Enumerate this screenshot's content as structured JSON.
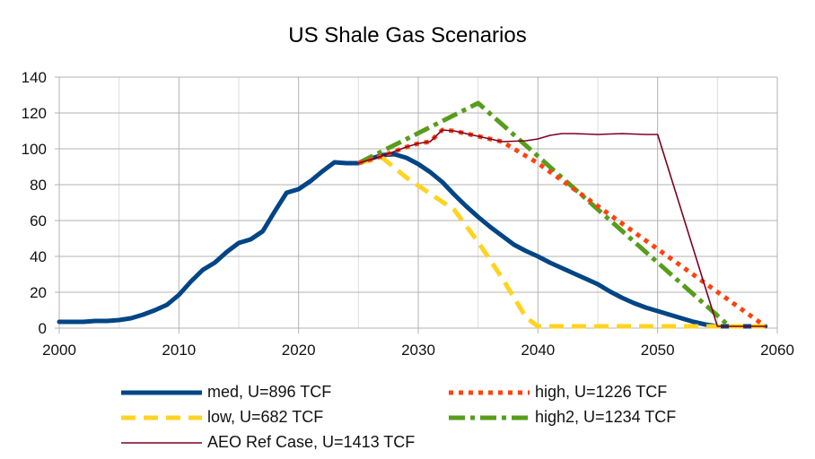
{
  "chart_data": {
    "type": "line",
    "title": "US Shale Gas Scenarios",
    "xlabel": "",
    "ylabel": "",
    "xlim": [
      2000,
      2060
    ],
    "ylim": [
      0,
      140
    ],
    "x_ticks": [
      2000,
      2010,
      2020,
      2030,
      2040,
      2050,
      2060
    ],
    "y_ticks": [
      0,
      20,
      40,
      60,
      80,
      100,
      120,
      140
    ],
    "grid": true,
    "legend_position": "bottom",
    "series": [
      {
        "name": "med, U=896 TCF",
        "color": "#004586",
        "style": "solid-thick",
        "x": [
          2000,
          2001,
          2002,
          2003,
          2004,
          2005,
          2006,
          2007,
          2008,
          2009,
          2010,
          2011,
          2012,
          2013,
          2014,
          2015,
          2016,
          2017,
          2018,
          2019,
          2020,
          2021,
          2022,
          2023,
          2024,
          2025,
          2026,
          2027,
          2028,
          2029,
          2030,
          2031,
          2032,
          2033,
          2034,
          2035,
          2036,
          2037,
          2038,
          2039,
          2040,
          2041,
          2042,
          2043,
          2044,
          2045,
          2046,
          2047,
          2048,
          2049,
          2050,
          2051,
          2052,
          2053,
          2054,
          2055,
          2056,
          2057,
          2058,
          2059
        ],
        "y": [
          3.5,
          3.5,
          3.5,
          4,
          4,
          4.5,
          5.5,
          7.5,
          10,
          13,
          18.5,
          26,
          32.5,
          36.5,
          42.5,
          47.5,
          49.5,
          54,
          65,
          75.5,
          77.5,
          82,
          87.5,
          92.5,
          92,
          92,
          94.5,
          96.5,
          97,
          95,
          91.5,
          87,
          81.5,
          74.5,
          68,
          62,
          56.5,
          51.5,
          46.5,
          43,
          40,
          36.5,
          33.5,
          30.5,
          27.5,
          24.5,
          20.5,
          17,
          14,
          11.5,
          9.5,
          7.5,
          5.5,
          3.5,
          2,
          1,
          1,
          1,
          1,
          1
        ]
      },
      {
        "name": "high, U=1226 TCF",
        "color": "#ff420e",
        "style": "dotted",
        "x": [
          2025,
          2027,
          2029,
          2030,
          2031,
          2032,
          2033,
          2035,
          2037,
          2040,
          2059
        ],
        "y": [
          92,
          96,
          101,
          103,
          104,
          110.5,
          110,
          107,
          104,
          92,
          1
        ]
      },
      {
        "name": "low, U=682 TCF",
        "color": "#ffd320",
        "style": "dashed",
        "x": [
          2025,
          2027,
          2029,
          2031,
          2033,
          2035,
          2037,
          2039,
          2040,
          2059
        ],
        "y": [
          92,
          95,
          84,
          75,
          66,
          48,
          28,
          6,
          1,
          1
        ]
      },
      {
        "name": "high2, U=1234 TCF",
        "color": "#579d1c",
        "style": "dash-dot",
        "x": [
          2025,
          2035,
          2056
        ],
        "y": [
          92,
          125.5,
          1
        ]
      },
      {
        "name": "AEO Ref Case, U=1413 TCF",
        "color": "#7e0021",
        "style": "thin",
        "x": [
          2025,
          2027,
          2029,
          2030,
          2031,
          2032,
          2033,
          2035,
          2037,
          2039,
          2040,
          2041,
          2042,
          2043,
          2045,
          2047,
          2049,
          2050,
          2055,
          2059
        ],
        "y": [
          92,
          96,
          101,
          103,
          104,
          110.5,
          110,
          107,
          104,
          104.5,
          105.5,
          107.5,
          108.5,
          108.5,
          108,
          108.5,
          108,
          108,
          1,
          1
        ]
      }
    ]
  }
}
